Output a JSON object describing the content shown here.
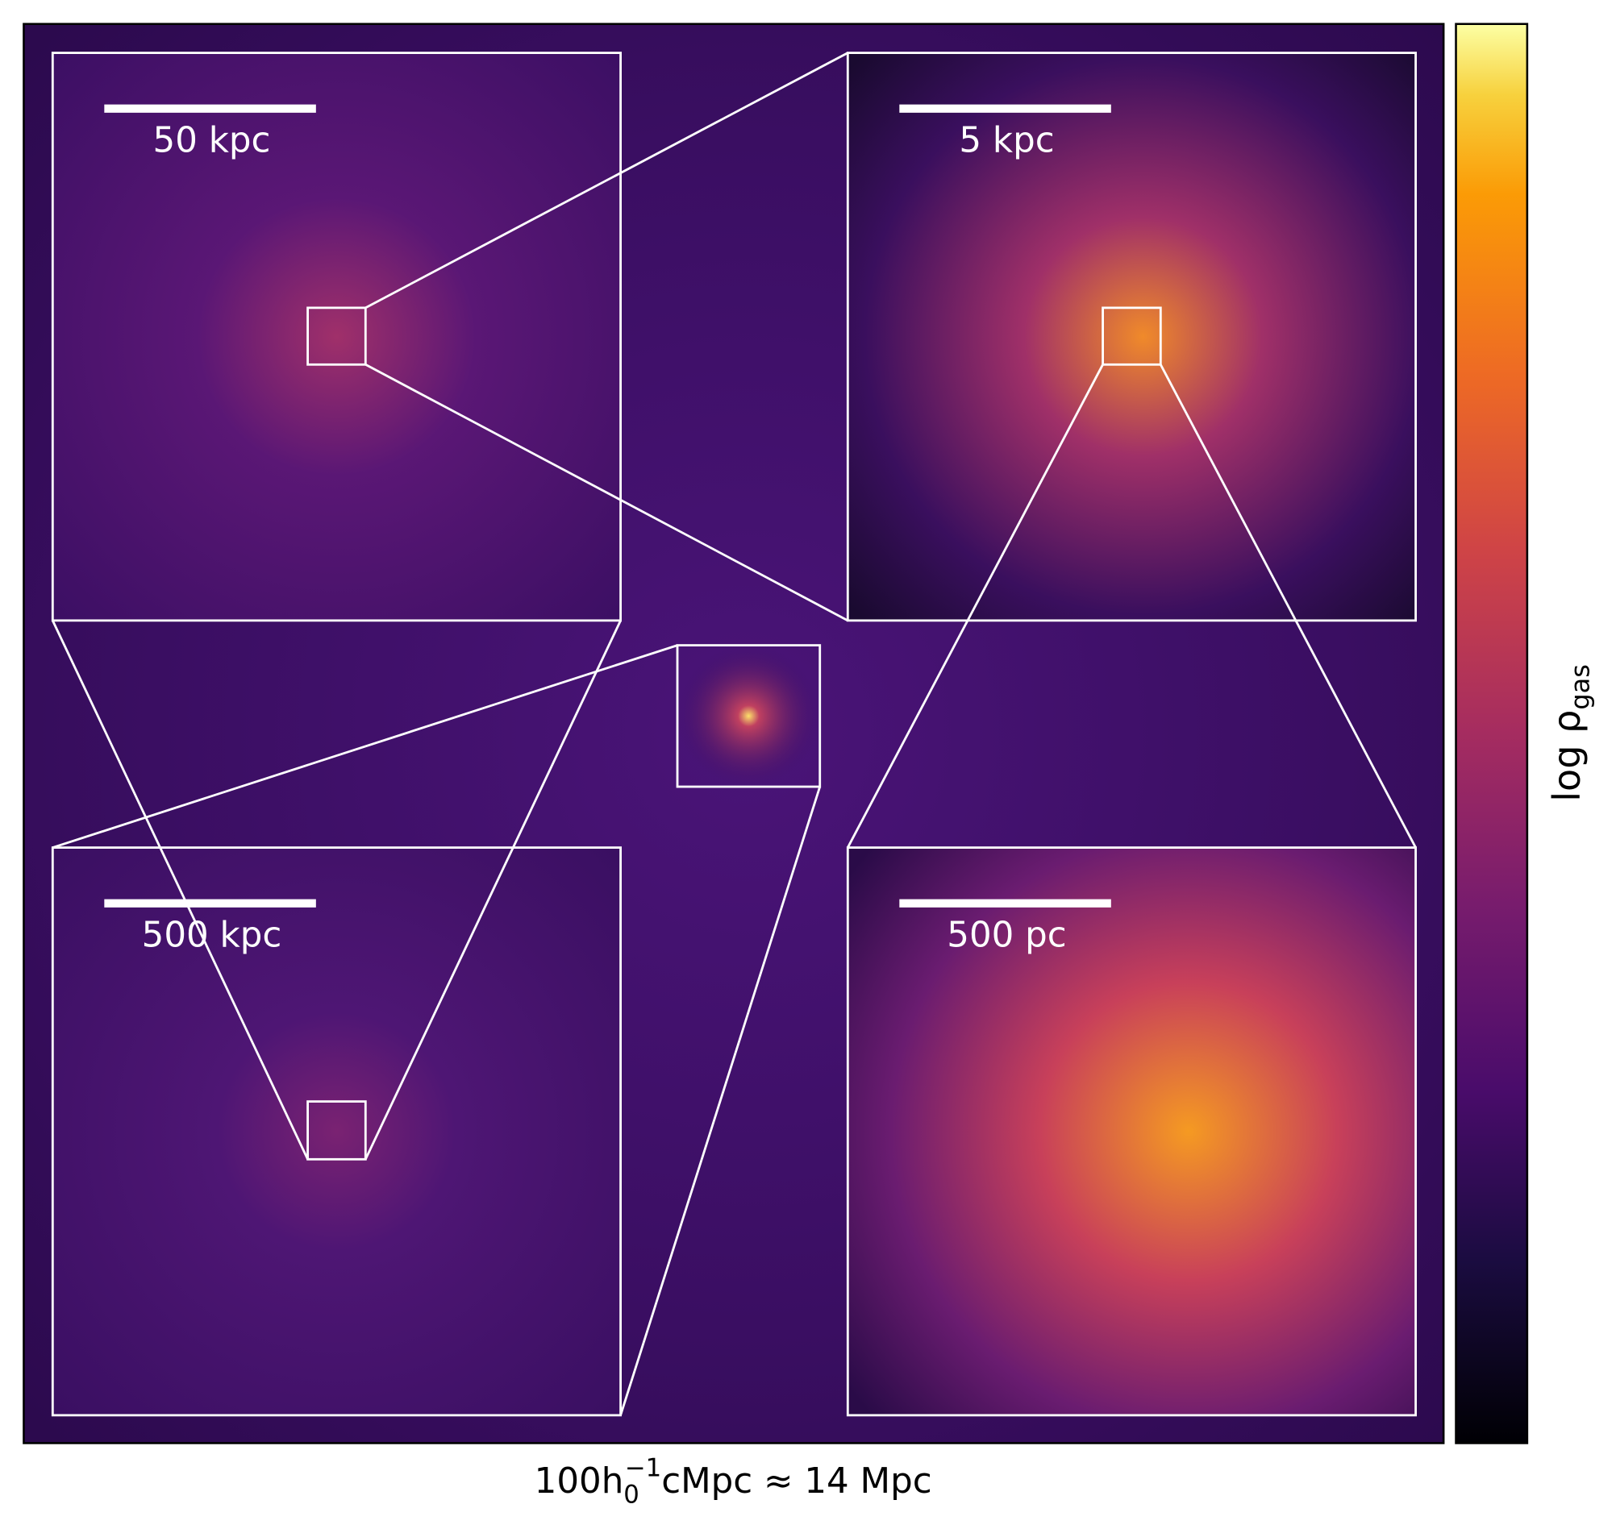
{
  "insets": [
    {
      "scale_label": "50 kpc"
    },
    {
      "scale_label": "5 kpc"
    },
    {
      "scale_label": "500 kpc"
    },
    {
      "scale_label": "500 pc"
    }
  ],
  "caption": {
    "main": "100h",
    "subscript": "0",
    "superscript": "−1",
    "rest": "cMpc ≈ 14 Mpc"
  },
  "colorbar": {
    "label": "log ρ",
    "subscript": "gas"
  }
}
